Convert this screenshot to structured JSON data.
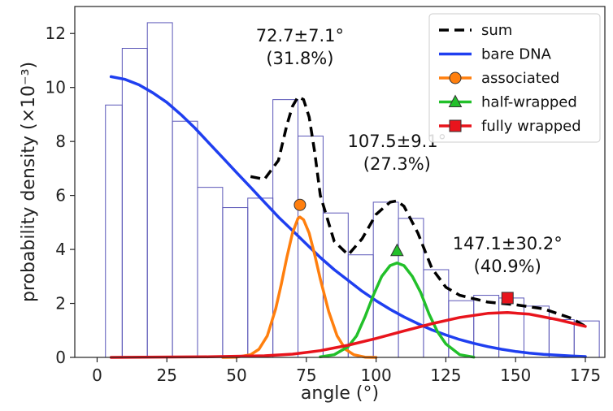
{
  "chart_data": {
    "type": "histogram+line",
    "xlabel": "angle (°)",
    "ylabel": "probability density (×10⁻³)",
    "xlim": [
      -8,
      182
    ],
    "ylim": [
      0,
      13
    ],
    "xticks": [
      0,
      25,
      50,
      75,
      100,
      125,
      150,
      175
    ],
    "yticks": [
      0,
      2,
      4,
      6,
      8,
      10,
      12
    ],
    "grid": false,
    "legend_position": "top-right",
    "histogram": {
      "color": "#5b57b8",
      "bins": [
        {
          "x0": 3,
          "x1": 9,
          "value": 9.35
        },
        {
          "x0": 9,
          "x1": 18,
          "value": 11.45
        },
        {
          "x0": 18,
          "x1": 27,
          "value": 12.4
        },
        {
          "x0": 27,
          "x1": 36,
          "value": 8.75
        },
        {
          "x0": 36,
          "x1": 45,
          "value": 6.3
        },
        {
          "x0": 45,
          "x1": 54,
          "value": 5.55
        },
        {
          "x0": 54,
          "x1": 63,
          "value": 5.9
        },
        {
          "x0": 63,
          "x1": 72,
          "value": 9.55
        },
        {
          "x0": 72,
          "x1": 81,
          "value": 8.2
        },
        {
          "x0": 81,
          "x1": 90,
          "value": 5.35
        },
        {
          "x0": 90,
          "x1": 99,
          "value": 3.8
        },
        {
          "x0": 99,
          "x1": 108,
          "value": 5.75
        },
        {
          "x0": 108,
          "x1": 117,
          "value": 5.15
        },
        {
          "x0": 117,
          "x1": 126,
          "value": 3.25
        },
        {
          "x0": 126,
          "x1": 135,
          "value": 2.1
        },
        {
          "x0": 135,
          "x1": 144,
          "value": 2.3
        },
        {
          "x0": 144,
          "x1": 153,
          "value": 2.2
        },
        {
          "x0": 153,
          "x1": 162,
          "value": 1.9
        },
        {
          "x0": 162,
          "x1": 171,
          "value": 1.4
        },
        {
          "x0": 171,
          "x1": 180,
          "value": 1.35
        }
      ]
    },
    "series": [
      {
        "name": "sum",
        "color": "#000000",
        "style": "dashed",
        "x": [
          55,
          60,
          65,
          68,
          70,
          72,
          74,
          76,
          78,
          80,
          85,
          90,
          95,
          100,
          105,
          107.5,
          110,
          115,
          120,
          125,
          130,
          140,
          150,
          160,
          170,
          175
        ],
        "y": [
          6.7,
          6.6,
          7.3,
          8.6,
          9.3,
          9.65,
          9.55,
          8.9,
          7.6,
          6.0,
          4.3,
          3.8,
          4.4,
          5.3,
          5.75,
          5.8,
          5.6,
          4.6,
          3.3,
          2.6,
          2.3,
          2.05,
          1.95,
          1.8,
          1.45,
          1.15
        ]
      },
      {
        "name": "bare DNA",
        "color": "#1f3ff0",
        "style": "solid",
        "x": [
          5,
          10,
          15,
          20,
          25,
          30,
          35,
          40,
          45,
          50,
          55,
          60,
          65,
          70,
          75,
          80,
          85,
          90,
          95,
          100,
          105,
          110,
          115,
          120,
          125,
          130,
          135,
          140,
          145,
          150,
          155,
          160,
          165,
          170,
          175
        ],
        "y": [
          10.4,
          10.3,
          10.1,
          9.8,
          9.45,
          9.0,
          8.5,
          7.95,
          7.4,
          6.85,
          6.3,
          5.75,
          5.2,
          4.7,
          4.2,
          3.7,
          3.25,
          2.85,
          2.45,
          2.1,
          1.78,
          1.5,
          1.25,
          1.02,
          0.83,
          0.66,
          0.52,
          0.4,
          0.3,
          0.22,
          0.16,
          0.11,
          0.08,
          0.05,
          0.03
        ]
      },
      {
        "name": "associated",
        "color": "#ff7f0e",
        "style": "solid",
        "marker": "circle",
        "marker_point": [
          72.7,
          5.65
        ],
        "x": [
          45,
          50,
          55,
          58,
          61,
          64,
          66,
          68,
          70,
          72,
          72.7,
          74,
          76,
          78,
          80,
          83,
          86,
          89,
          92,
          96,
          100
        ],
        "y": [
          0,
          0.01,
          0.1,
          0.3,
          0.8,
          1.8,
          2.7,
          3.7,
          4.6,
          5.15,
          5.2,
          5.1,
          4.6,
          3.8,
          2.9,
          1.7,
          0.8,
          0.3,
          0.1,
          0.01,
          0
        ]
      },
      {
        "name": "half-wrapped",
        "color": "#22c02a",
        "style": "solid",
        "marker": "triangle",
        "marker_point": [
          107.5,
          3.95
        ],
        "x": [
          80,
          85,
          90,
          93,
          96,
          99,
          102,
          105,
          107.5,
          110,
          113,
          116,
          119,
          122,
          125,
          130,
          135
        ],
        "y": [
          0.02,
          0.1,
          0.4,
          0.8,
          1.5,
          2.3,
          3.0,
          3.4,
          3.5,
          3.4,
          3.0,
          2.4,
          1.6,
          0.95,
          0.5,
          0.1,
          0.01
        ]
      },
      {
        "name": "fully wrapped",
        "color": "#e8141c",
        "style": "solid",
        "marker": "square",
        "marker_point": [
          147.1,
          2.2
        ],
        "x": [
          5,
          40,
          60,
          70,
          80,
          90,
          100,
          110,
          120,
          130,
          140,
          147.1,
          155,
          165,
          175
        ],
        "y": [
          0,
          0.02,
          0.06,
          0.12,
          0.25,
          0.45,
          0.7,
          0.98,
          1.25,
          1.48,
          1.63,
          1.66,
          1.6,
          1.4,
          1.15
        ]
      }
    ],
    "annotations": [
      {
        "line1": "72.7±7.1°",
        "line2": "(31.8%)",
        "x": 72.7,
        "y": 11.7
      },
      {
        "line1": "107.5±9.1°",
        "line2": "(27.3%)",
        "x": 107.5,
        "y": 7.8
      },
      {
        "line1": "147.1±30.2°",
        "line2": "(40.9%)",
        "x": 147.1,
        "y": 4.0
      }
    ]
  }
}
